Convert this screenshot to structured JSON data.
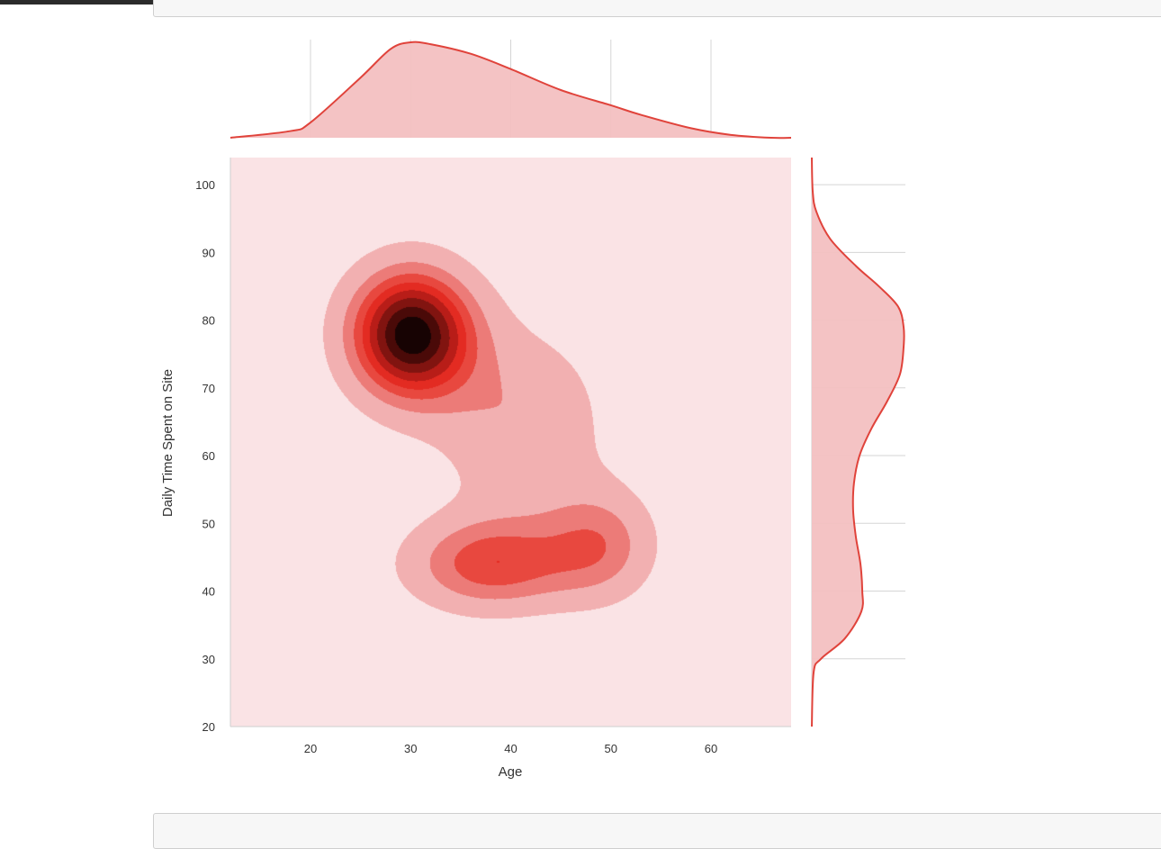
{
  "notebook": {
    "prompt_bottom": "",
    "code_bottom": ""
  },
  "chart_data": {
    "type": "kde-joint",
    "xlabel": "Age",
    "ylabel": "Daily Time Spent on Site",
    "xlim": [
      12,
      68
    ],
    "ylim": [
      20,
      104
    ],
    "xticks": [
      20,
      30,
      40,
      50,
      60
    ],
    "yticks": [
      20,
      30,
      40,
      50,
      60,
      70,
      80,
      90,
      100
    ],
    "grid": true,
    "colors": {
      "background": "#fae3e5",
      "levels": [
        "#f2b0b1",
        "#ec7b78",
        "#e8483f",
        "#e32b22",
        "#b81d18",
        "#811410",
        "#4a0a08",
        "#170303"
      ],
      "marginal_line": "#e0433b",
      "marginal_fill": "#f3c0c1",
      "grid": "#d5d5d5"
    },
    "density_components": [
      {
        "age": 30,
        "time": 78,
        "sigma_age": 4.5,
        "sigma_time": 7,
        "weight": 1.0
      },
      {
        "age": 38,
        "time": 44,
        "sigma_age": 6,
        "sigma_time": 5,
        "weight": 0.52
      },
      {
        "age": 49,
        "time": 47,
        "sigma_age": 4,
        "sigma_time": 6,
        "weight": 0.36
      },
      {
        "age": 41,
        "time": 65,
        "sigma_age": 6,
        "sigma_time": 10,
        "weight": 0.3
      }
    ],
    "contour_levels": [
      0.15,
      0.32,
      0.45,
      0.56,
      0.66,
      0.76,
      0.86,
      0.95
    ],
    "marginal_x": {
      "x": [
        12,
        18,
        20,
        25,
        28,
        30,
        32,
        36,
        40,
        45,
        50,
        53,
        58,
        62,
        66,
        68
      ],
      "density": [
        0.0,
        0.07,
        0.16,
        0.63,
        0.93,
        1.0,
        0.98,
        0.88,
        0.72,
        0.5,
        0.34,
        0.24,
        0.1,
        0.03,
        0.0,
        0.0
      ]
    },
    "marginal_y": {
      "y": [
        20,
        28,
        30,
        33,
        37,
        40,
        44,
        48,
        52,
        56,
        60,
        64,
        68,
        72,
        76,
        79,
        82,
        85,
        88,
        92,
        96,
        99,
        104
      ],
      "density": [
        0.0,
        0.02,
        0.1,
        0.36,
        0.54,
        0.55,
        0.53,
        0.48,
        0.45,
        0.46,
        0.52,
        0.65,
        0.82,
        0.96,
        1.0,
        1.0,
        0.94,
        0.73,
        0.48,
        0.2,
        0.05,
        0.01,
        0.0
      ]
    }
  }
}
